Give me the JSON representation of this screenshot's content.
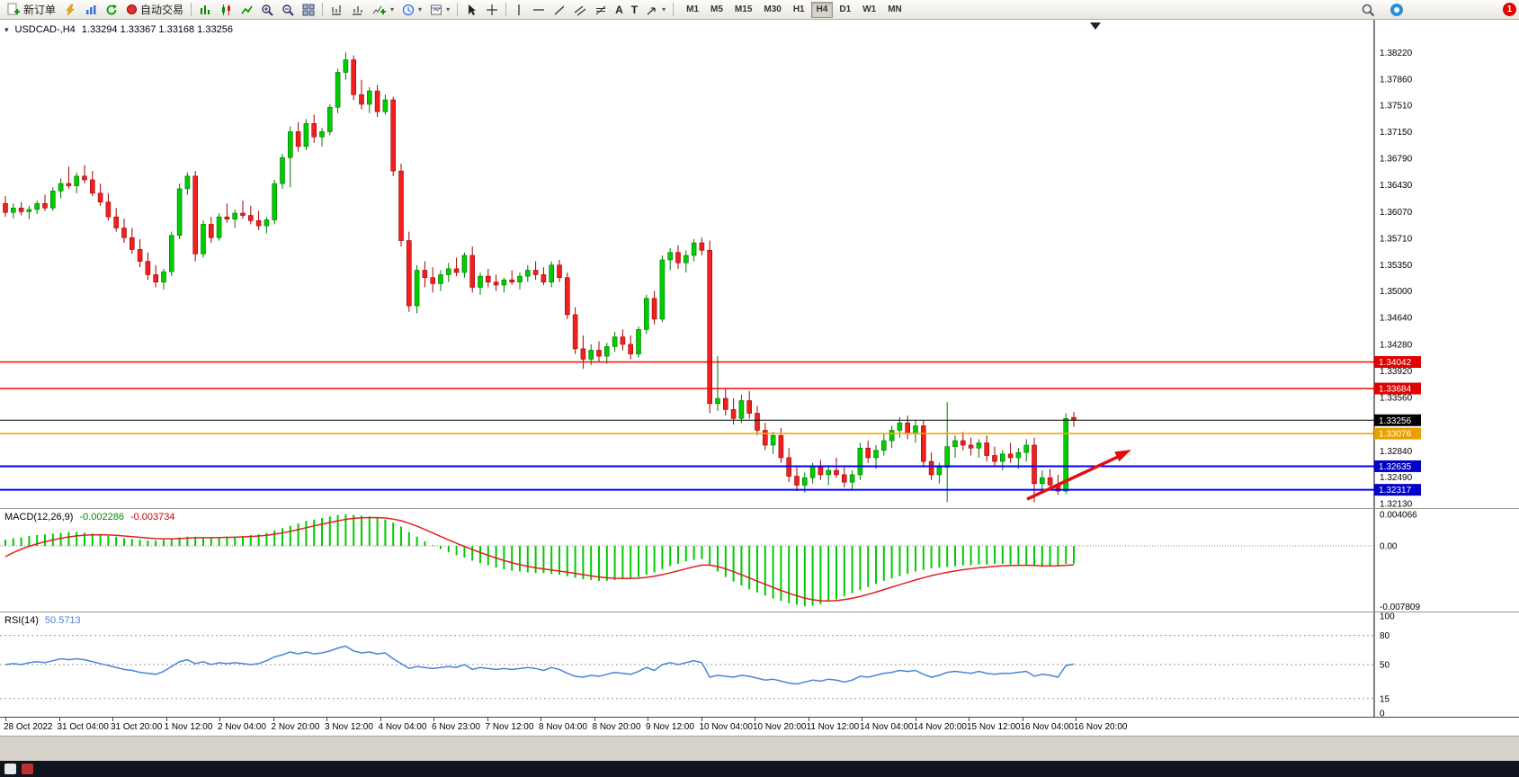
{
  "toolbar": {
    "new_order_label": "新订单",
    "auto_trading_label": "自动交易",
    "timeframes": [
      "M1",
      "M5",
      "M15",
      "M30",
      "H1",
      "H4",
      "D1",
      "W1",
      "MN"
    ],
    "active_timeframe": "H4",
    "notification_count": "1",
    "glyphs": {
      "text_tool": "A",
      "label_tool": "T"
    }
  },
  "chart": {
    "symbol": "USDCAD-,H4",
    "ohlc": "1.33294 1.33367 1.33168 1.33256",
    "price_max": 1.3866,
    "price_min": 1.3207,
    "price_axis_ticks": [
      "1.38220",
      "1.37860",
      "1.37510",
      "1.37150",
      "1.36790",
      "1.36430",
      "1.36070",
      "1.35710",
      "1.35350",
      "1.35000",
      "1.34640",
      "1.34280",
      "1.33920",
      "1.33560",
      "1.32840",
      "1.32490",
      "1.32130"
    ],
    "hlines": [
      {
        "price": 1.34042,
        "label": "1.34042",
        "color": "#FF0000",
        "tag_bg": "#E00000",
        "width": 1.6
      },
      {
        "price": 1.33684,
        "label": "1.33684",
        "color": "#FF0000",
        "tag_bg": "#E00000",
        "width": 1.6
      },
      {
        "price": 1.33256,
        "label": "1.33256",
        "color": "#000000",
        "tag_bg": "#000000",
        "width": 1
      },
      {
        "price": 1.33076,
        "label": "1.33076",
        "color": "#F5A800",
        "tag_bg": "#E8A000",
        "width": 1.6
      },
      {
        "price": 1.32635,
        "label": "1.32635",
        "color": "#0000FF",
        "tag_bg": "#0000C8",
        "width": 2
      },
      {
        "price": 1.32317,
        "label": "1.32317",
        "color": "#0000FF",
        "tag_bg": "#0000C8",
        "width": 2
      }
    ]
  },
  "chart_data": {
    "type": "candlestick",
    "title": "USDCAD H4",
    "candles": [
      [
        1.3618,
        1.3628,
        1.36,
        1.3606
      ],
      [
        1.3606,
        1.3618,
        1.3598,
        1.3612
      ],
      [
        1.3612,
        1.362,
        1.3602,
        1.3607
      ],
      [
        1.3607,
        1.3615,
        1.3597,
        1.361
      ],
      [
        1.361,
        1.3622,
        1.3604,
        1.3618
      ],
      [
        1.3618,
        1.363,
        1.3608,
        1.3612
      ],
      [
        1.3612,
        1.364,
        1.3608,
        1.3635
      ],
      [
        1.3635,
        1.3652,
        1.3625,
        1.3645
      ],
      [
        1.3645,
        1.3668,
        1.3638,
        1.3642
      ],
      [
        1.3642,
        1.366,
        1.3632,
        1.3655
      ],
      [
        1.3655,
        1.367,
        1.3645,
        1.365
      ],
      [
        1.365,
        1.3662,
        1.3628,
        1.3632
      ],
      [
        1.3632,
        1.3645,
        1.3615,
        1.362
      ],
      [
        1.362,
        1.3632,
        1.3595,
        1.36
      ],
      [
        1.36,
        1.3612,
        1.358,
        1.3585
      ],
      [
        1.3585,
        1.3598,
        1.3565,
        1.3572
      ],
      [
        1.3572,
        1.3585,
        1.355,
        1.3556
      ],
      [
        1.3556,
        1.357,
        1.3532,
        1.354
      ],
      [
        1.354,
        1.3552,
        1.3515,
        1.3522
      ],
      [
        1.3522,
        1.3535,
        1.3505,
        1.3512
      ],
      [
        1.3512,
        1.353,
        1.3502,
        1.3526
      ],
      [
        1.3526,
        1.358,
        1.352,
        1.3575
      ],
      [
        1.3575,
        1.3645,
        1.357,
        1.3638
      ],
      [
        1.3638,
        1.366,
        1.363,
        1.3655
      ],
      [
        1.3655,
        1.3662,
        1.354,
        1.355
      ],
      [
        1.355,
        1.3595,
        1.3545,
        1.359
      ],
      [
        1.359,
        1.36,
        1.3565,
        1.3572
      ],
      [
        1.3572,
        1.3605,
        1.3568,
        1.36
      ],
      [
        1.36,
        1.3618,
        1.3592,
        1.3597
      ],
      [
        1.3597,
        1.361,
        1.3585,
        1.3605
      ],
      [
        1.3605,
        1.3622,
        1.3598,
        1.3602
      ],
      [
        1.3602,
        1.3615,
        1.359,
        1.3595
      ],
      [
        1.3595,
        1.3608,
        1.3582,
        1.3588
      ],
      [
        1.3588,
        1.36,
        1.3578,
        1.3596
      ],
      [
        1.3596,
        1.365,
        1.359,
        1.3645
      ],
      [
        1.3645,
        1.3685,
        1.3638,
        1.368
      ],
      [
        1.368,
        1.3722,
        1.364,
        1.3715
      ],
      [
        1.3715,
        1.3728,
        1.3688,
        1.3695
      ],
      [
        1.3695,
        1.3732,
        1.369,
        1.3726
      ],
      [
        1.3726,
        1.3738,
        1.37,
        1.3708
      ],
      [
        1.3708,
        1.372,
        1.3695,
        1.3715
      ],
      [
        1.3715,
        1.3752,
        1.371,
        1.3748
      ],
      [
        1.3748,
        1.38,
        1.374,
        1.3795
      ],
      [
        1.3795,
        1.3822,
        1.3785,
        1.3812
      ],
      [
        1.3812,
        1.3818,
        1.3758,
        1.3765
      ],
      [
        1.3765,
        1.3785,
        1.3745,
        1.3752
      ],
      [
        1.3752,
        1.3775,
        1.374,
        1.377
      ],
      [
        1.377,
        1.3778,
        1.3735,
        1.3742
      ],
      [
        1.3742,
        1.3765,
        1.3738,
        1.3758
      ],
      [
        1.3758,
        1.3762,
        1.3655,
        1.3662
      ],
      [
        1.3662,
        1.3672,
        1.356,
        1.3568
      ],
      [
        1.3568,
        1.358,
        1.3472,
        1.348
      ],
      [
        1.348,
        1.3535,
        1.347,
        1.3528
      ],
      [
        1.3528,
        1.354,
        1.3505,
        1.3518
      ],
      [
        1.3518,
        1.3532,
        1.3498,
        1.351
      ],
      [
        1.351,
        1.3528,
        1.35,
        1.3522
      ],
      [
        1.3522,
        1.3538,
        1.3512,
        1.353
      ],
      [
        1.353,
        1.3545,
        1.352,
        1.3525
      ],
      [
        1.3525,
        1.3552,
        1.3518,
        1.3548
      ],
      [
        1.3548,
        1.356,
        1.3498,
        1.3505
      ],
      [
        1.3505,
        1.3525,
        1.3495,
        1.352
      ],
      [
        1.352,
        1.353,
        1.3505,
        1.3512
      ],
      [
        1.3512,
        1.3522,
        1.35,
        1.3508
      ],
      [
        1.3508,
        1.3518,
        1.3498,
        1.3515
      ],
      [
        1.3515,
        1.3528,
        1.3508,
        1.3512
      ],
      [
        1.3512,
        1.3525,
        1.3502,
        1.352
      ],
      [
        1.352,
        1.3535,
        1.3512,
        1.3528
      ],
      [
        1.3528,
        1.354,
        1.3515,
        1.3522
      ],
      [
        1.3522,
        1.3532,
        1.3508,
        1.3512
      ],
      [
        1.3512,
        1.354,
        1.3505,
        1.3535
      ],
      [
        1.3535,
        1.3542,
        1.3512,
        1.3518
      ],
      [
        1.3518,
        1.3525,
        1.3462,
        1.3468
      ],
      [
        1.3468,
        1.3478,
        1.3415,
        1.3422
      ],
      [
        1.3422,
        1.344,
        1.3395,
        1.3408
      ],
      [
        1.3408,
        1.3428,
        1.34,
        1.342
      ],
      [
        1.342,
        1.3432,
        1.3405,
        1.3412
      ],
      [
        1.3412,
        1.343,
        1.3402,
        1.3425
      ],
      [
        1.3425,
        1.3445,
        1.3418,
        1.3438
      ],
      [
        1.3438,
        1.3448,
        1.342,
        1.3428
      ],
      [
        1.3428,
        1.344,
        1.3408,
        1.3415
      ],
      [
        1.3415,
        1.3452,
        1.341,
        1.3448
      ],
      [
        1.3448,
        1.3495,
        1.3442,
        1.349
      ],
      [
        1.349,
        1.35,
        1.3455,
        1.3462
      ],
      [
        1.3462,
        1.3548,
        1.3458,
        1.3542
      ],
      [
        1.3542,
        1.3558,
        1.3528,
        1.3552
      ],
      [
        1.3552,
        1.3562,
        1.353,
        1.3538
      ],
      [
        1.3538,
        1.3555,
        1.3525,
        1.3548
      ],
      [
        1.3548,
        1.357,
        1.354,
        1.3565
      ],
      [
        1.3565,
        1.3572,
        1.3548,
        1.3555
      ],
      [
        1.3555,
        1.3568,
        1.3335,
        1.3348
      ],
      [
        1.3348,
        1.3412,
        1.3338,
        1.3355
      ],
      [
        1.3355,
        1.3368,
        1.3332,
        1.334
      ],
      [
        1.334,
        1.3355,
        1.332,
        1.3328
      ],
      [
        1.3328,
        1.336,
        1.3322,
        1.3352
      ],
      [
        1.3352,
        1.3365,
        1.3328,
        1.3335
      ],
      [
        1.3335,
        1.3345,
        1.3305,
        1.3312
      ],
      [
        1.3312,
        1.3322,
        1.3285,
        1.3292
      ],
      [
        1.3292,
        1.331,
        1.328,
        1.3305
      ],
      [
        1.3305,
        1.3315,
        1.3268,
        1.3275
      ],
      [
        1.3275,
        1.3288,
        1.3242,
        1.325
      ],
      [
        1.325,
        1.3262,
        1.323,
        1.3238
      ],
      [
        1.3238,
        1.3255,
        1.3228,
        1.3248
      ],
      [
        1.3248,
        1.3268,
        1.324,
        1.3262
      ],
      [
        1.3262,
        1.3272,
        1.3245,
        1.3252
      ],
      [
        1.3252,
        1.3265,
        1.3238,
        1.3258
      ],
      [
        1.3258,
        1.3275,
        1.3248,
        1.3252
      ],
      [
        1.3252,
        1.3262,
        1.3235,
        1.3242
      ],
      [
        1.3242,
        1.3258,
        1.3232,
        1.3252
      ],
      [
        1.3252,
        1.3295,
        1.3245,
        1.3288
      ],
      [
        1.3288,
        1.3298,
        1.3268,
        1.3275
      ],
      [
        1.3275,
        1.3292,
        1.326,
        1.3285
      ],
      [
        1.3285,
        1.3308,
        1.3278,
        1.3298
      ],
      [
        1.3298,
        1.3318,
        1.3288,
        1.3312
      ],
      [
        1.3312,
        1.333,
        1.3302,
        1.3322
      ],
      [
        1.3322,
        1.3332,
        1.33,
        1.3308
      ],
      [
        1.3308,
        1.3325,
        1.3295,
        1.3318
      ],
      [
        1.3318,
        1.3325,
        1.3262,
        1.327
      ],
      [
        1.327,
        1.3282,
        1.3245,
        1.3252
      ],
      [
        1.3252,
        1.3268,
        1.324,
        1.3262
      ],
      [
        1.3262,
        1.335,
        1.3215,
        1.329
      ],
      [
        1.329,
        1.3305,
        1.3275,
        1.3298
      ],
      [
        1.3298,
        1.331,
        1.3285,
        1.3292
      ],
      [
        1.3292,
        1.3302,
        1.3278,
        1.3288
      ],
      [
        1.3288,
        1.33,
        1.3275,
        1.3295
      ],
      [
        1.3295,
        1.3305,
        1.327,
        1.3278
      ],
      [
        1.3278,
        1.329,
        1.3262,
        1.327
      ],
      [
        1.327,
        1.3285,
        1.3258,
        1.328
      ],
      [
        1.328,
        1.3295,
        1.3268,
        1.3275
      ],
      [
        1.3275,
        1.3288,
        1.326,
        1.3282
      ],
      [
        1.3282,
        1.33,
        1.327,
        1.3292
      ],
      [
        1.3292,
        1.3302,
        1.3215,
        1.324
      ],
      [
        1.324,
        1.3258,
        1.3228,
        1.3248
      ],
      [
        1.3248,
        1.326,
        1.3232,
        1.3238
      ],
      [
        1.3238,
        1.3252,
        1.3225,
        1.323
      ],
      [
        1.323,
        1.3335,
        1.3226,
        1.3328
      ],
      [
        1.33294,
        1.33367,
        1.33168,
        1.33256
      ]
    ],
    "macd": {
      "label": "MACD(12,26,9)",
      "value_text_macd": "-0.002286",
      "value_text_signal": "-0.003734",
      "max": 0.0043,
      "min": -0.008,
      "signal_start": -0.002,
      "axis": [
        {
          "value": 0.004066,
          "label": "0.004066"
        },
        {
          "value": 0,
          "label": "0.00"
        },
        {
          "value": -0.007809,
          "label": "-0.007809"
        }
      ],
      "values": [
        0.0008,
        0.001,
        0.0011,
        0.0013,
        0.0014,
        0.0015,
        0.0016,
        0.0017,
        0.0018,
        0.0018,
        0.0017,
        0.0016,
        0.0015,
        0.0013,
        0.0012,
        0.001,
        0.0009,
        0.0008,
        0.0007,
        0.0007,
        0.0008,
        0.0009,
        0.0011,
        0.0012,
        0.0012,
        0.0011,
        0.0011,
        0.0011,
        0.0012,
        0.0012,
        0.0013,
        0.0014,
        0.0015,
        0.0017,
        0.002,
        0.0023,
        0.0026,
        0.0029,
        0.0032,
        0.0034,
        0.0036,
        0.0038,
        0.004,
        0.0041,
        0.004,
        0.0039,
        0.0038,
        0.0036,
        0.0034,
        0.003,
        0.0025,
        0.0018,
        0.0012,
        0.0006,
        0.0001,
        -0.0004,
        -0.0008,
        -0.0012,
        -0.0015,
        -0.0019,
        -0.0022,
        -0.0025,
        -0.0028,
        -0.003,
        -0.0032,
        -0.0033,
        -0.0034,
        -0.0035,
        -0.0035,
        -0.0036,
        -0.0037,
        -0.0039,
        -0.0041,
        -0.0043,
        -0.0044,
        -0.0045,
        -0.0045,
        -0.0044,
        -0.0043,
        -0.0042,
        -0.004,
        -0.0037,
        -0.0034,
        -0.003,
        -0.0026,
        -0.0023,
        -0.002,
        -0.0018,
        -0.0017,
        -0.0025,
        -0.0033,
        -0.004,
        -0.0046,
        -0.0051,
        -0.0056,
        -0.006,
        -0.0064,
        -0.0068,
        -0.0071,
        -0.0074,
        -0.0076,
        -0.0078,
        -0.0077,
        -0.0075,
        -0.0072,
        -0.0069,
        -0.0065,
        -0.0061,
        -0.0057,
        -0.0053,
        -0.0049,
        -0.0045,
        -0.0042,
        -0.0039,
        -0.0036,
        -0.0033,
        -0.0031,
        -0.0029,
        -0.0028,
        -0.0027,
        -0.0026,
        -0.0025,
        -0.0025,
        -0.0024,
        -0.0024,
        -0.0023,
        -0.0023,
        -0.0024,
        -0.0024,
        -0.0025,
        -0.0026,
        -0.0027,
        -0.0026,
        -0.0025,
        -0.0023,
        -0.002286
      ]
    },
    "rsi": {
      "label": "RSI(14)",
      "value_text": "50.5713",
      "levels": [
        80,
        50,
        15
      ],
      "axis": [
        {
          "value": 100,
          "label": "100"
        },
        {
          "value": 80,
          "label": "80"
        },
        {
          "value": 50,
          "label": "50"
        },
        {
          "value": 15,
          "label": "15"
        },
        {
          "value": 0,
          "label": "0"
        }
      ],
      "values": [
        50,
        51,
        50,
        52,
        53,
        52,
        54,
        56,
        55,
        56,
        55,
        53,
        51,
        49,
        47,
        45,
        44,
        42,
        41,
        40,
        43,
        48,
        53,
        55,
        51,
        53,
        50,
        52,
        51,
        52,
        51,
        50,
        51,
        54,
        58,
        60,
        63,
        61,
        63,
        61,
        62,
        64,
        67,
        69,
        64,
        62,
        63,
        61,
        62,
        56,
        51,
        46,
        48,
        47,
        46,
        47,
        48,
        47,
        50,
        45,
        47,
        46,
        45,
        46,
        45,
        46,
        47,
        46,
        44,
        47,
        45,
        41,
        38,
        37,
        39,
        38,
        40,
        42,
        41,
        40,
        43,
        47,
        44,
        50,
        52,
        50,
        52,
        54,
        52,
        37,
        39,
        38,
        37,
        39,
        38,
        36,
        34,
        35,
        33,
        31,
        30,
        32,
        34,
        33,
        35,
        34,
        32,
        34,
        38,
        37,
        39,
        41,
        42,
        44,
        43,
        44,
        40,
        37,
        39,
        42,
        43,
        42,
        41,
        43,
        41,
        40,
        41,
        41,
        42,
        43,
        38,
        40,
        39,
        37,
        49,
        50.57
      ]
    },
    "time_axis": [
      "28 Oct 2022",
      "31 Oct 04:00",
      "31 Oct 20:00",
      "1 Nov 12:00",
      "2 Nov 04:00",
      "2 Nov 20:00",
      "3 Nov 12:00",
      "4 Nov 04:00",
      "6 Nov 23:00",
      "7 Nov 12:00",
      "8 Nov 04:00",
      "8 Nov 20:00",
      "9 Nov 12:00",
      "10 Nov 04:00",
      "10 Nov 20:00",
      "11 Nov 12:00",
      "14 Nov 04:00",
      "14 Nov 20:00",
      "15 Nov 12:00",
      "16 Nov 04:00",
      "16 Nov 20:00"
    ]
  },
  "colors": {
    "bull_fill": "#00CC00",
    "bull_edge": "#007700",
    "bear_fill": "#F02020",
    "bear_edge": "#A00000",
    "macd_hist": "#00CC00",
    "macd_signal": "#E02020",
    "rsi_line": "#4985D6",
    "arrow": "#E01010"
  }
}
